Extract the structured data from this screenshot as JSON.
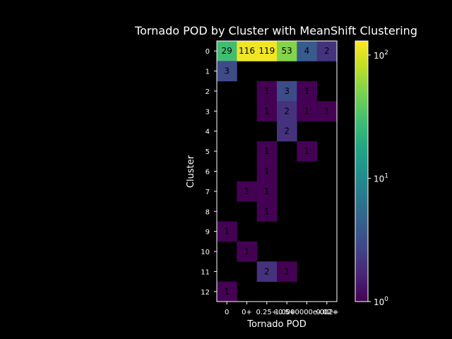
{
  "chart_data": {
    "type": "heatmap",
    "title": "Tornado POD by Cluster with MeanShift Clustering",
    "xlabel": "Tornado POD",
    "ylabel": "Cluster",
    "x_tick_labels": [
      "0",
      "0+",
      "0.25+",
      "0.5+",
      "1.0000000e-002+",
      "0.02+"
    ],
    "y_tick_labels": [
      "0",
      "1",
      "2",
      "3",
      "4",
      "5",
      "6",
      "7",
      "8",
      "9",
      "10",
      "11",
      "12"
    ],
    "values": [
      [
        29,
        116,
        119,
        53,
        4,
        2
      ],
      [
        3,
        null,
        null,
        null,
        null,
        null
      ],
      [
        null,
        null,
        1,
        3,
        1,
        null
      ],
      [
        null,
        null,
        1,
        2,
        1,
        1
      ],
      [
        null,
        null,
        null,
        2,
        null,
        null
      ],
      [
        null,
        null,
        1,
        null,
        1,
        null
      ],
      [
        null,
        null,
        1,
        null,
        null,
        null
      ],
      [
        null,
        1,
        1,
        null,
        null,
        null
      ],
      [
        null,
        null,
        1,
        null,
        null,
        null
      ],
      [
        1,
        null,
        null,
        null,
        null,
        null
      ],
      [
        null,
        1,
        null,
        null,
        null,
        null
      ],
      [
        null,
        null,
        2,
        1,
        null,
        null
      ],
      [
        1,
        null,
        null,
        null,
        null,
        null
      ]
    ],
    "colorbar": {
      "scale": "log",
      "colormap": "viridis",
      "range": [
        1,
        130
      ],
      "tick_labels": [
        "10^0",
        "10^1",
        "10^2"
      ]
    },
    "background_color": "#000000",
    "text_color": "#ffffff",
    "cell_label_color": "#000000"
  }
}
